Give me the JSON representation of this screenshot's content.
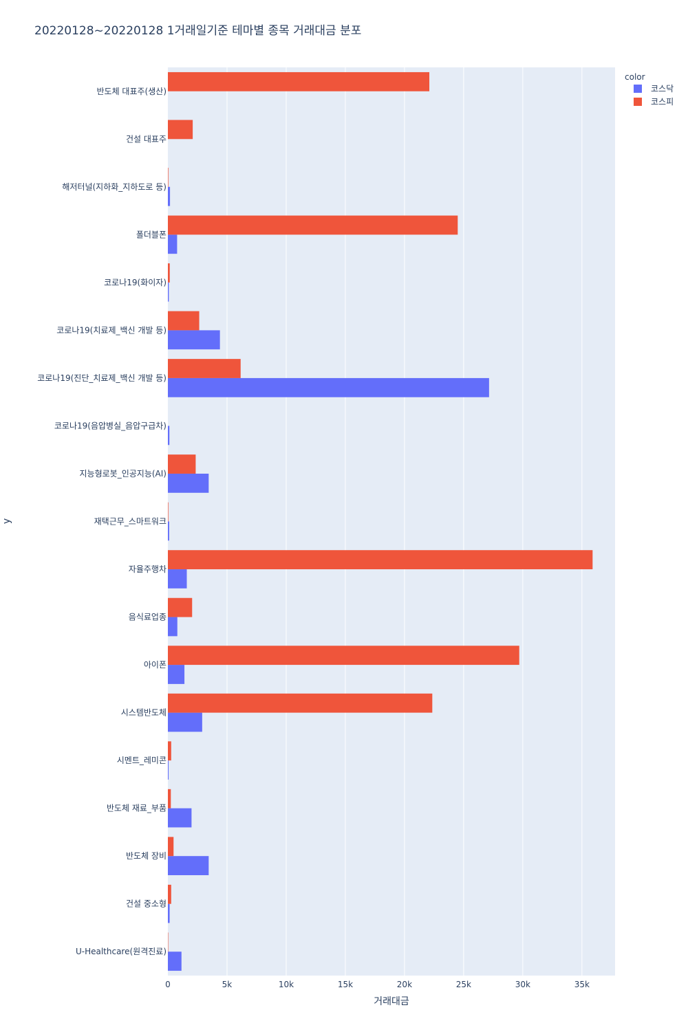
{
  "chart_data": {
    "type": "bar",
    "orientation": "horizontal",
    "title": "20220128~20220128 1거래일기준 테마별 종목 거래대금 분포",
    "xlabel": "거래대금",
    "ylabel": "y",
    "xlim": [
      0,
      37800
    ],
    "xticks": [
      {
        "value": 0,
        "label": "0"
      },
      {
        "value": 5000,
        "label": "5k"
      },
      {
        "value": 10000,
        "label": "10k"
      },
      {
        "value": 15000,
        "label": "15k"
      },
      {
        "value": 20000,
        "label": "20k"
      },
      {
        "value": 25000,
        "label": "25k"
      },
      {
        "value": 30000,
        "label": "30k"
      },
      {
        "value": 35000,
        "label": "35k"
      }
    ],
    "grid": true,
    "legend": {
      "title": "color",
      "placement": "top-right"
    },
    "categories": [
      "반도체 대표주(생산)",
      "건설 대표주",
      "해저터널(지하화_지하도로 등)",
      "폴더블폰",
      "코로나19(화이자)",
      "코로나19(치료제_백신 개발 등)",
      "코로나19(진단_치료제_백신 개발 등)",
      "코로나19(음압병실_음압구급차)",
      "지능형로봇_인공지능(AI)",
      "재택근무_스마트워크",
      "자율주행차",
      "음식료업종",
      "아이폰",
      "시스템반도체",
      "시멘트_레미콘",
      "반도체 재료_부품",
      "반도체 장비",
      "건설 중소형",
      "U-Healthcare(원격진료)"
    ],
    "series": [
      {
        "name": "코스닥",
        "color": "#636efa",
        "values": [
          0,
          0,
          180,
          780,
          80,
          4400,
          27150,
          130,
          3450,
          110,
          1600,
          800,
          1400,
          2900,
          60,
          2000,
          3450,
          150,
          1150
        ]
      },
      {
        "name": "코스피",
        "color": "#ef553b",
        "values": [
          22100,
          2100,
          40,
          24500,
          160,
          2650,
          6150,
          0,
          2350,
          40,
          35900,
          2050,
          29700,
          22350,
          280,
          250,
          480,
          280,
          30
        ]
      }
    ]
  }
}
